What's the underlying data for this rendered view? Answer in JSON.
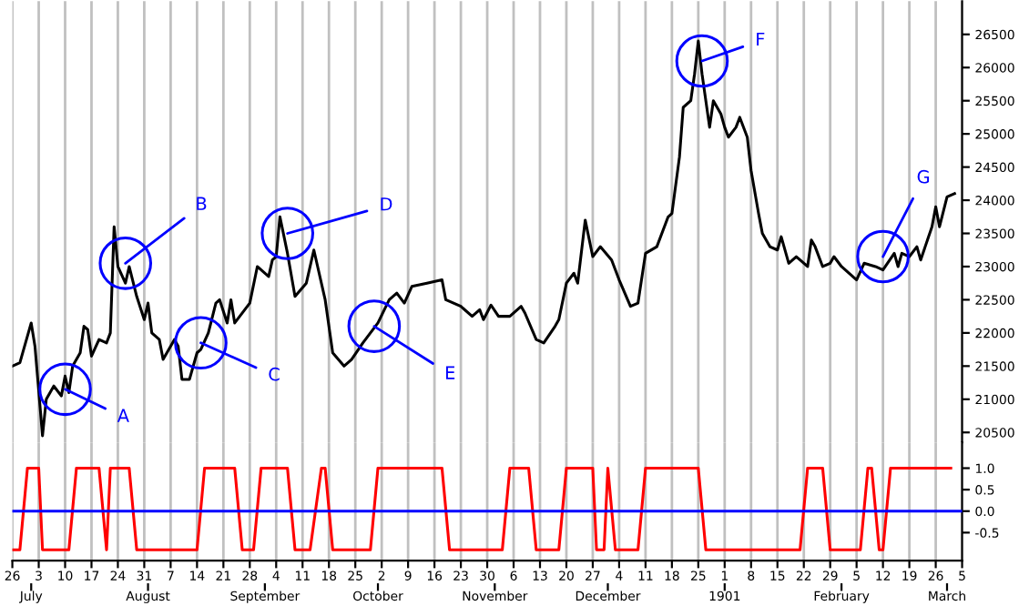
{
  "chart_data": [
    {
      "type": "line",
      "grid": "x",
      "tick_labels": "y",
      "xlim": [
        "1900-06-26",
        "1901-03-05"
      ],
      "xticks": [
        {
          "value": "1900-06-26",
          "label": null
        },
        {
          "value": "1900-07-03",
          "label": null
        },
        {
          "value": "1900-07-10",
          "label": null
        },
        {
          "value": "1900-07-17",
          "label": null
        },
        {
          "value": "1900-07-24",
          "label": null
        },
        {
          "value": "1900-07-31",
          "label": null
        },
        {
          "value": "1900-08-07",
          "label": null
        },
        {
          "value": "1900-08-14",
          "label": null
        },
        {
          "value": "1900-08-21",
          "label": null
        },
        {
          "value": "1900-08-28",
          "label": null
        },
        {
          "value": "1900-09-04",
          "label": null
        },
        {
          "value": "1900-09-11",
          "label": null
        },
        {
          "value": "1900-09-18",
          "label": null
        },
        {
          "value": "1900-09-25",
          "label": null
        },
        {
          "value": "1900-10-02",
          "label": null
        },
        {
          "value": "1900-10-09",
          "label": null
        },
        {
          "value": "1900-10-16",
          "label": null
        },
        {
          "value": "1900-10-23",
          "label": null
        },
        {
          "value": "1900-10-30",
          "label": null
        },
        {
          "value": "1900-11-06",
          "label": null
        },
        {
          "value": "1900-11-13",
          "label": null
        },
        {
          "value": "1900-11-20",
          "label": null
        },
        {
          "value": "1900-11-27",
          "label": null
        },
        {
          "value": "1900-12-04",
          "label": null
        },
        {
          "value": "1900-12-11",
          "label": null
        },
        {
          "value": "1900-12-18",
          "label": null
        },
        {
          "value": "1900-12-25",
          "label": null
        },
        {
          "value": "1901-01-01",
          "label": null
        },
        {
          "value": "1901-01-08",
          "label": null
        },
        {
          "value": "1901-01-15",
          "label": null
        },
        {
          "value": "1901-01-22",
          "label": null
        },
        {
          "value": "1901-01-29",
          "label": null
        },
        {
          "value": "1901-02-05",
          "label": null
        },
        {
          "value": "1901-02-12",
          "label": null
        },
        {
          "value": "1901-02-19",
          "label": null
        },
        {
          "value": "1901-02-26",
          "label": null
        },
        {
          "value": "1901-03-05",
          "label": null
        }
      ],
      "ylim": [
        20350,
        27000
      ],
      "yticks": [
        20500,
        21000,
        21500,
        22000,
        22500,
        23000,
        23500,
        24000,
        24500,
        25000,
        25500,
        26000,
        26500
      ],
      "series": [
        {
          "color": "#000000",
          "x": [
            "1900-06-26",
            "1900-06-28",
            "1900-07-01",
            "1900-07-02",
            "1900-07-04",
            "1900-07-05",
            "1900-07-07",
            "1900-07-09",
            "1900-07-10",
            "1900-07-11",
            "1900-07-12",
            "1900-07-14",
            "1900-07-15",
            "1900-07-16",
            "1900-07-17",
            "1900-07-19",
            "1900-07-21",
            "1900-07-22",
            "1900-07-23",
            "1900-07-24",
            "1900-07-26",
            "1900-07-27",
            "1900-07-29",
            "1900-07-31",
            "1900-08-01",
            "1900-08-02",
            "1900-08-04",
            "1900-08-05",
            "1900-08-08",
            "1900-08-09",
            "1900-08-10",
            "1900-08-12",
            "1900-08-14",
            "1900-08-15",
            "1900-08-17",
            "1900-08-19",
            "1900-08-20",
            "1900-08-22",
            "1900-08-23",
            "1900-08-24",
            "1900-08-28",
            "1900-08-30",
            "1900-09-02",
            "1900-09-03",
            "1900-09-04",
            "1900-09-05",
            "1900-09-07",
            "1900-09-09",
            "1900-09-12",
            "1900-09-14",
            "1900-09-17",
            "1900-09-19",
            "1900-09-22",
            "1900-09-24",
            "1900-09-27",
            "1900-10-01",
            "1900-10-04",
            "1900-10-06",
            "1900-10-08",
            "1900-10-10",
            "1900-10-14",
            "1900-10-18",
            "1900-10-19",
            "1900-10-23",
            "1900-10-26",
            "1900-10-28",
            "1900-10-29",
            "1900-10-31",
            "1900-11-02",
            "1900-11-05",
            "1900-11-08",
            "1900-11-09",
            "1900-11-12",
            "1900-11-14",
            "1900-11-17",
            "1900-11-18",
            "1900-11-20",
            "1900-11-22",
            "1900-11-23",
            "1900-11-25",
            "1900-11-27",
            "1900-11-29",
            "1900-12-02",
            "1900-12-04",
            "1900-12-07",
            "1900-12-09",
            "1900-12-11",
            "1900-12-14",
            "1900-12-17",
            "1900-12-18",
            "1900-12-20",
            "1900-12-21",
            "1900-12-23",
            "1900-12-24",
            "1900-12-25",
            "1900-12-26",
            "1900-12-28",
            "1900-12-29",
            "1900-12-31",
            "1901-01-01",
            "1901-01-02",
            "1901-01-04",
            "1901-01-05",
            "1901-01-07",
            "1901-01-08",
            "1901-01-10",
            "1901-01-11",
            "1901-01-13",
            "1901-01-15",
            "1901-01-16",
            "1901-01-18",
            "1901-01-20",
            "1901-01-21",
            "1901-01-23",
            "1901-01-24",
            "1901-01-25",
            "1901-01-27",
            "1901-01-29",
            "1901-01-30",
            "1901-02-01",
            "1901-02-05",
            "1901-02-07",
            "1901-02-10",
            "1901-02-12",
            "1901-02-15",
            "1901-02-16",
            "1901-02-17",
            "1901-02-19",
            "1901-02-21",
            "1901-02-22",
            "1901-02-25",
            "1901-02-26",
            "1901-02-27",
            "1901-03-01",
            "1901-03-03"
          ],
          "values": [
            21500,
            21550,
            22150,
            21800,
            20450,
            21000,
            21200,
            21050,
            21350,
            21100,
            21500,
            21700,
            22100,
            22050,
            21650,
            21900,
            21850,
            22000,
            23600,
            23000,
            22750,
            23000,
            22550,
            22200,
            22450,
            22000,
            21900,
            21600,
            21900,
            21800,
            21300,
            21300,
            21700,
            21750,
            22000,
            22450,
            22500,
            22150,
            22500,
            22150,
            22450,
            23000,
            22850,
            23100,
            23150,
            23750,
            23200,
            22550,
            22750,
            23250,
            22500,
            21700,
            21500,
            21600,
            21850,
            22150,
            22500,
            22600,
            22450,
            22700,
            22750,
            22800,
            22500,
            22400,
            22250,
            22350,
            22200,
            22420,
            22250,
            22250,
            22400,
            22300,
            21900,
            21850,
            22100,
            22200,
            22750,
            22900,
            22750,
            23700,
            23150,
            23300,
            23100,
            22800,
            22400,
            22450,
            23200,
            23300,
            23750,
            23800,
            24650,
            25400,
            25500,
            25900,
            26400,
            25900,
            25100,
            25500,
            25300,
            25100,
            24950,
            25100,
            25250,
            24950,
            24450,
            23800,
            23500,
            23300,
            23250,
            23450,
            23050,
            23150,
            23100,
            23000,
            23400,
            23300,
            23000,
            23050,
            23150,
            23000,
            22800,
            23050,
            23000,
            22950,
            23200,
            23000,
            23200,
            23150,
            23300,
            23100,
            23600,
            23900,
            23600,
            24050,
            24100
          ]
        }
      ],
      "annotations": [
        {
          "text": "A",
          "x": "1900-07-10",
          "y": 21150
        },
        {
          "text": "B",
          "x": "1900-07-26",
          "y": 23050
        },
        {
          "text": "C",
          "x": "1900-08-15",
          "y": 21850
        },
        {
          "text": "D",
          "x": "1900-09-07",
          "y": 23500
        },
        {
          "text": "E",
          "x": "1900-09-30",
          "y": 22100
        },
        {
          "text": "F",
          "x": "1900-12-26",
          "y": 26100
        },
        {
          "text": "G",
          "x": "1901-02-12",
          "y": 23150
        }
      ]
    },
    {
      "type": "line",
      "grid": "x",
      "xlim": [
        "1900-06-26",
        "1901-03-05"
      ],
      "xticks": [
        {
          "value": "1900-06-26",
          "label": "26"
        },
        {
          "value": "1900-07-03",
          "label": "3"
        },
        {
          "value": "1900-07-10",
          "label": "10"
        },
        {
          "value": "1900-07-17",
          "label": "17"
        },
        {
          "value": "1900-07-24",
          "label": "24"
        },
        {
          "value": "1900-07-31",
          "label": "31"
        },
        {
          "value": "1900-08-07",
          "label": "7"
        },
        {
          "value": "1900-08-14",
          "label": "14"
        },
        {
          "value": "1900-08-21",
          "label": "21"
        },
        {
          "value": "1900-08-28",
          "label": "28"
        },
        {
          "value": "1900-09-04",
          "label": "4"
        },
        {
          "value": "1900-09-11",
          "label": "11"
        },
        {
          "value": "1900-09-18",
          "label": "18"
        },
        {
          "value": "1900-09-25",
          "label": "25"
        },
        {
          "value": "1900-10-02",
          "label": "2"
        },
        {
          "value": "1900-10-09",
          "label": "9"
        },
        {
          "value": "1900-10-16",
          "label": "16"
        },
        {
          "value": "1900-10-23",
          "label": "23"
        },
        {
          "value": "1900-10-30",
          "label": "30"
        },
        {
          "value": "1900-11-06",
          "label": "6"
        },
        {
          "value": "1900-11-13",
          "label": "13"
        },
        {
          "value": "1900-11-20",
          "label": "20"
        },
        {
          "value": "1900-11-27",
          "label": "27"
        },
        {
          "value": "1900-12-04",
          "label": "4"
        },
        {
          "value": "1900-12-11",
          "label": "11"
        },
        {
          "value": "1900-12-18",
          "label": "18"
        },
        {
          "value": "1900-12-25",
          "label": "25"
        },
        {
          "value": "1901-01-01",
          "label": "1"
        },
        {
          "value": "1901-01-08",
          "label": "8"
        },
        {
          "value": "1901-01-15",
          "label": "15"
        },
        {
          "value": "1901-01-22",
          "label": "22"
        },
        {
          "value": "1901-01-29",
          "label": "29"
        },
        {
          "value": "1901-02-05",
          "label": "5"
        },
        {
          "value": "1901-02-12",
          "label": "12"
        },
        {
          "value": "1901-02-19",
          "label": "19"
        },
        {
          "value": "1901-02-26",
          "label": "26"
        },
        {
          "value": "1901-03-05",
          "label": "5"
        }
      ],
      "x2lim": [
        "1900-06-26",
        "1901-03-05"
      ],
      "x2ticks": [
        {
          "value": "1900-07-01",
          "label": "July"
        },
        {
          "value": "1900-08-01",
          "label": "August"
        },
        {
          "value": "1900-09-01",
          "label": "September"
        },
        {
          "value": "1900-10-01",
          "label": "October"
        },
        {
          "value": "1900-11-01",
          "label": "November"
        },
        {
          "value": "1900-12-01",
          "label": "December"
        },
        {
          "value": "1901-01-01",
          "label": "1901"
        },
        {
          "value": "1901-02-01",
          "label": "February"
        },
        {
          "value": "1901-03-01",
          "label": "March"
        }
      ],
      "ylim": [
        -1.15,
        1.6
      ],
      "yticks": [
        {
          "value": -0.5,
          "label": "-0.5"
        },
        {
          "value": 0,
          "label": "0.0"
        },
        {
          "value": 0.5,
          "label": "0.5"
        },
        {
          "value": 1,
          "label": "1.0"
        }
      ],
      "ref_lines": [
        {
          "axis": "y",
          "value": 0,
          "color": "#0000ff"
        }
      ],
      "series": [
        {
          "color": "#ff0000",
          "x": [
            "1900-06-26",
            "1900-06-28",
            "1900-06-30",
            "1900-07-03",
            "1900-07-04",
            "1900-07-11",
            "1900-07-13",
            "1900-07-19",
            "1900-07-21",
            "1900-07-22",
            "1900-07-27",
            "1900-07-29",
            "1900-08-14",
            "1900-08-16",
            "1900-08-24",
            "1900-08-26",
            "1900-08-29",
            "1900-08-31",
            "1900-09-07",
            "1900-09-09",
            "1900-09-13",
            "1900-09-16",
            "1900-09-17",
            "1900-09-19",
            "1900-09-29",
            "1900-10-01",
            "1900-10-18",
            "1900-10-20",
            "1900-11-03",
            "1900-11-05",
            "1900-11-10",
            "1900-11-12",
            "1900-11-18",
            "1900-11-20",
            "1900-11-27",
            "1900-11-28",
            "1900-11-30",
            "1900-12-01",
            "1900-12-03",
            "1900-12-09",
            "1900-12-11",
            "1900-12-25",
            "1900-12-27",
            "1901-01-21",
            "1901-01-23",
            "1901-01-27",
            "1901-01-29",
            "1901-02-06",
            "1901-02-08",
            "1901-02-09",
            "1901-02-11",
            "1901-02-12",
            "1901-02-14",
            "1901-03-02"
          ],
          "values": [
            -0.9,
            -0.9,
            1,
            1,
            -0.9,
            -0.9,
            1,
            1,
            -0.9,
            1,
            1,
            -0.9,
            -0.9,
            1,
            1,
            -0.9,
            -0.9,
            1,
            1,
            -0.9,
            -0.9,
            1,
            1,
            -0.9,
            -0.9,
            1,
            1,
            -0.9,
            -0.9,
            1,
            1,
            -0.9,
            -0.9,
            1,
            1,
            -0.9,
            -0.9,
            1,
            -0.9,
            -0.9,
            1,
            1,
            -0.9,
            -0.9,
            1,
            1,
            -0.9,
            -0.9,
            1,
            1,
            -0.9,
            -0.9,
            1,
            1
          ]
        }
      ]
    }
  ]
}
